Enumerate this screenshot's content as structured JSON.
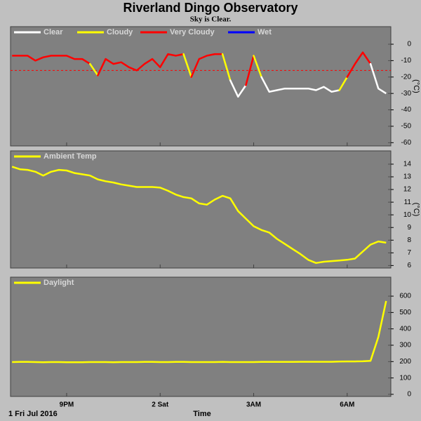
{
  "header": {
    "title": "Riverland Dingo Observatory",
    "subtitle": "Sky is Clear."
  },
  "chart_data": [
    {
      "type": "line",
      "ylabel": "(°C)",
      "ylim": [
        -62,
        10.7
      ],
      "yticks": [
        0,
        -10,
        -20,
        -30,
        -40,
        -50,
        -60
      ],
      "xlim": [
        19.2,
        31.4
      ],
      "threshold": -16,
      "threshold_color": "#ff0000",
      "legend": "top-left",
      "x": [
        19.25,
        19.5,
        19.75,
        20,
        20.25,
        20.5,
        20.75,
        21,
        21.25,
        21.5,
        21.75,
        22,
        22.25,
        22.5,
        22.75,
        23,
        23.25,
        23.5,
        23.75,
        24,
        24.25,
        24.5,
        24.75,
        25,
        25.25,
        25.5,
        25.75,
        26,
        26.25,
        26.5,
        26.75,
        27,
        27.25,
        27.5,
        27.75,
        28,
        28.25,
        28.5,
        28.75,
        29,
        29.25,
        29.5,
        29.75,
        30,
        30.25,
        30.5,
        30.75,
        31,
        31.25
      ],
      "series": [
        {
          "name": "Clear",
          "color": "#ffffff",
          "values": [
            null,
            null,
            null,
            null,
            null,
            null,
            null,
            null,
            null,
            null,
            null,
            null,
            null,
            null,
            null,
            null,
            null,
            null,
            null,
            null,
            null,
            null,
            null,
            null,
            null,
            null,
            null,
            null,
            null,
            -32,
            -25,
            null,
            null,
            -29,
            -28,
            -27,
            -27,
            -27,
            -27,
            -28,
            -26,
            -29,
            -28,
            null,
            null,
            null,
            null,
            -27,
            -30
          ]
        },
        {
          "name": "Cloudy",
          "color": "#ffff00",
          "values": [
            null,
            null,
            null,
            null,
            null,
            null,
            null,
            null,
            null,
            null,
            null,
            -19,
            null,
            null,
            null,
            null,
            null,
            null,
            null,
            null,
            null,
            null,
            null,
            -20,
            null,
            null,
            null,
            null,
            -22,
            null,
            null,
            null,
            -20,
            null,
            null,
            null,
            null,
            null,
            null,
            null,
            null,
            null,
            null,
            -20,
            null,
            null,
            null,
            null,
            null
          ]
        },
        {
          "name": "Very Cloudy",
          "color": "#ff0000",
          "values": [
            -7,
            -7,
            -7,
            -10,
            -8,
            -7,
            -7,
            -7,
            -9,
            -9,
            -12,
            null,
            -9,
            -12,
            -11,
            -14,
            -16,
            -12,
            -9,
            -14,
            -6,
            -7,
            -6,
            null,
            -9,
            -7,
            -6,
            -6,
            null,
            null,
            null,
            -7,
            null,
            null,
            null,
            null,
            null,
            null,
            null,
            null,
            null,
            null,
            null,
            null,
            -12,
            -5,
            -12,
            null,
            null
          ]
        },
        {
          "name": "Wet",
          "color": "#0000ff",
          "values": [
            null,
            null,
            null,
            null,
            null,
            null,
            null,
            null,
            null,
            null,
            null,
            null,
            null,
            null,
            null,
            null,
            null,
            null,
            null,
            null,
            null,
            null,
            null,
            null,
            null,
            null,
            null,
            null,
            null,
            null,
            null,
            null,
            null,
            null,
            null,
            null,
            null,
            null,
            null,
            null,
            null,
            null,
            null,
            null,
            null,
            null,
            null,
            null,
            null
          ]
        }
      ]
    },
    {
      "type": "line",
      "ylabel": "(°C)",
      "ylim": [
        5.8,
        15.05
      ],
      "yticks": [
        14,
        13,
        12,
        11,
        10,
        9,
        8,
        7,
        6
      ],
      "xlim": [
        19.2,
        31.4
      ],
      "legend": "top-left",
      "x": [
        19.25,
        19.5,
        19.75,
        20,
        20.25,
        20.5,
        20.75,
        21,
        21.25,
        21.5,
        21.75,
        22,
        22.25,
        22.5,
        22.75,
        23,
        23.25,
        23.5,
        23.75,
        24,
        24.25,
        24.5,
        24.75,
        25,
        25.25,
        25.5,
        25.75,
        26,
        26.25,
        26.5,
        26.75,
        27,
        27.25,
        27.5,
        27.75,
        28,
        28.25,
        28.5,
        28.75,
        29,
        29.25,
        29.5,
        29.75,
        30,
        30.25,
        30.5,
        30.75,
        31,
        31.25
      ],
      "series": [
        {
          "name": "Ambient Temp",
          "color": "#ffff00",
          "values": [
            13.8,
            13.6,
            13.55,
            13.4,
            13.1,
            13.4,
            13.55,
            13.5,
            13.3,
            13.2,
            13.1,
            12.8,
            12.65,
            12.55,
            12.4,
            12.3,
            12.2,
            12.2,
            12.2,
            12.15,
            11.9,
            11.6,
            11.4,
            11.3,
            10.9,
            10.8,
            11.2,
            11.5,
            11.3,
            10.3,
            9.7,
            9.1,
            8.8,
            8.6,
            8.1,
            7.7,
            7.3,
            6.9,
            6.45,
            6.2,
            6.3,
            6.35,
            6.4,
            6.45,
            6.55,
            7.1,
            7.65,
            7.9,
            7.8
          ]
        }
      ]
    },
    {
      "type": "line",
      "ylim": [
        -13,
        716
      ],
      "yticks": [
        600,
        500,
        400,
        300,
        200,
        100,
        0
      ],
      "xlim": [
        19.2,
        31.4
      ],
      "legend": "top-left",
      "xlabel": "Time",
      "date_label": "1 Fri Jul 2016",
      "xticks": [
        {
          "value": 21,
          "label": "9PM"
        },
        {
          "value": 24,
          "label": "2 Sat"
        },
        {
          "value": 27,
          "label": "3AM"
        },
        {
          "value": 30,
          "label": "6AM"
        }
      ],
      "x": [
        19.25,
        19.5,
        19.75,
        20,
        20.25,
        20.5,
        20.75,
        21,
        21.25,
        21.5,
        21.75,
        22,
        22.25,
        22.5,
        22.75,
        23,
        23.25,
        23.5,
        23.75,
        24,
        24.25,
        24.5,
        24.75,
        25,
        25.25,
        25.5,
        25.75,
        26,
        26.25,
        26.5,
        26.75,
        27,
        27.25,
        27.5,
        27.75,
        28,
        28.25,
        28.5,
        28.75,
        29,
        29.25,
        29.5,
        29.75,
        30,
        30.25,
        30.5,
        30.75,
        31,
        31.25
      ],
      "series": [
        {
          "name": "Daylight",
          "color": "#ffff00",
          "values": [
            197,
            198,
            198,
            197,
            196,
            197,
            197,
            196,
            196,
            196,
            197,
            197,
            197,
            196,
            197,
            197,
            197,
            198,
            198,
            197,
            197,
            198,
            198,
            197,
            197,
            197,
            197,
            198,
            197,
            197,
            197,
            197,
            198,
            198,
            198,
            198,
            198,
            199,
            199,
            199,
            199,
            199,
            200,
            201,
            201,
            202,
            205,
            350,
            570
          ]
        }
      ]
    }
  ]
}
